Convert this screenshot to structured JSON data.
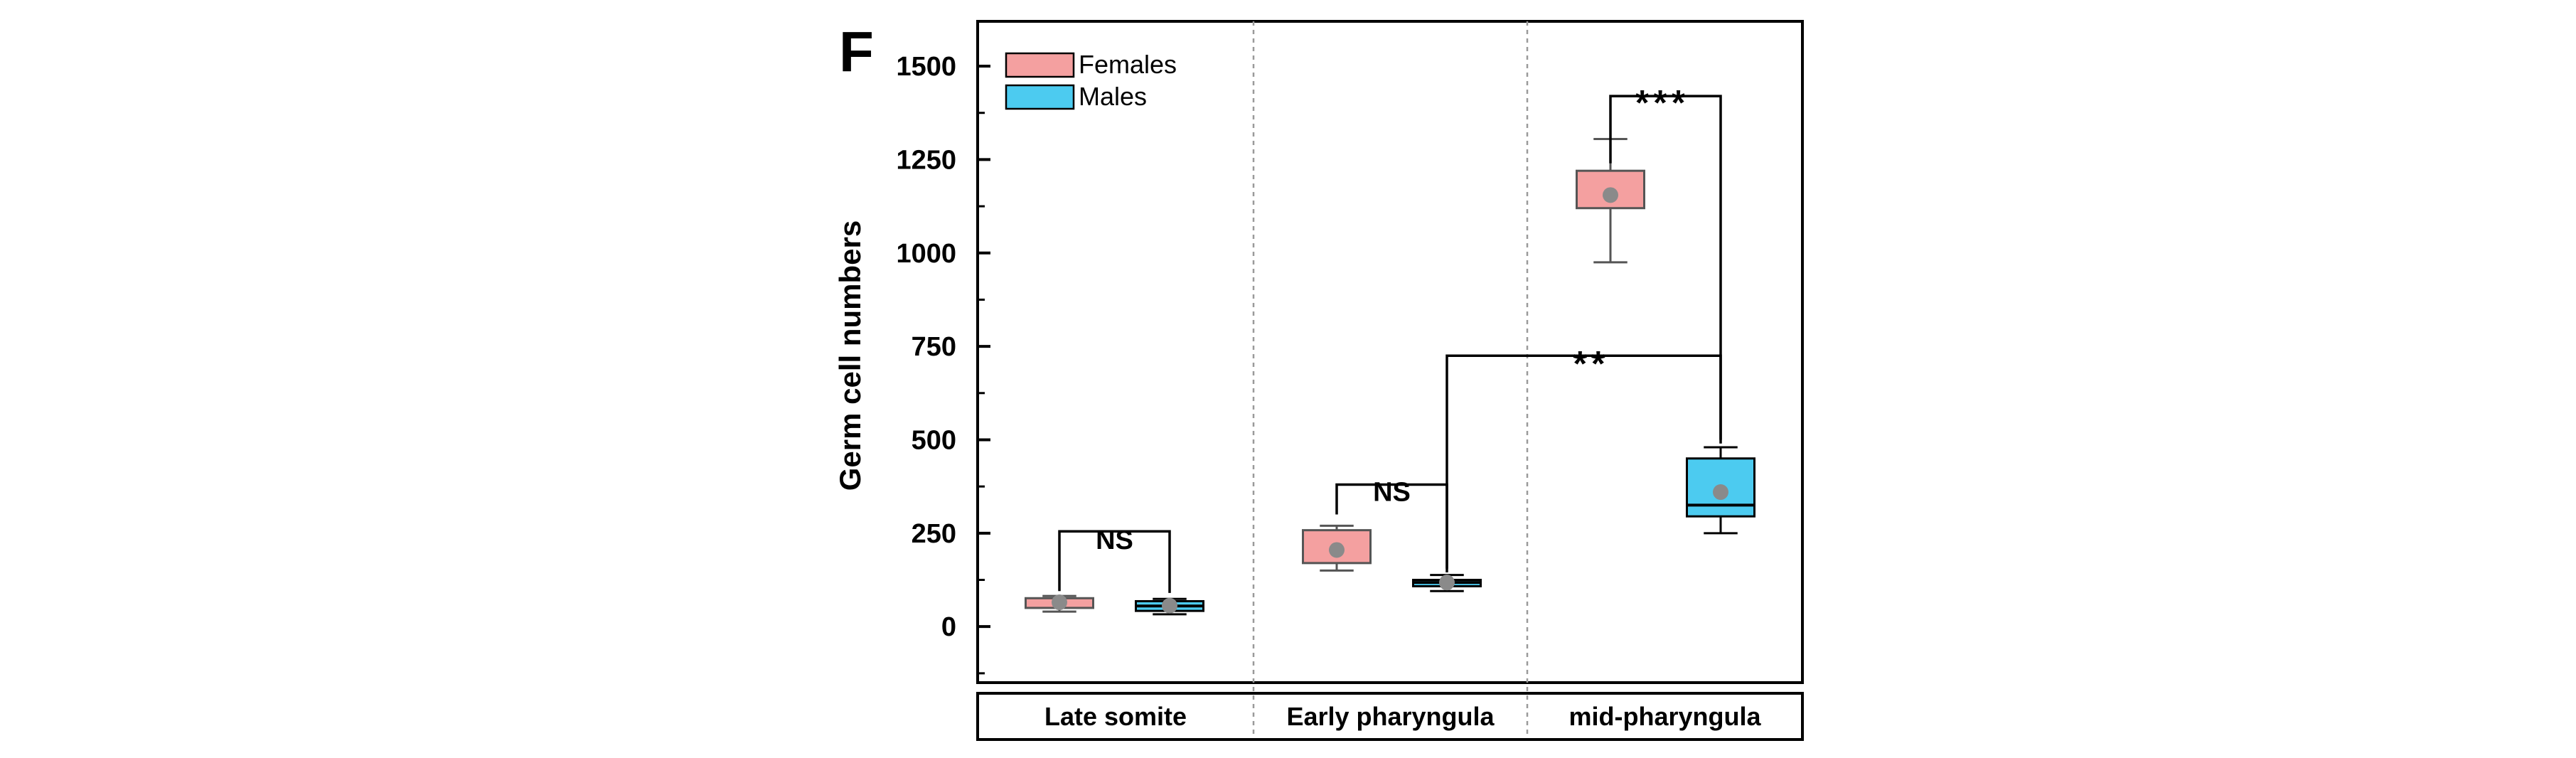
{
  "panel_label": "F",
  "colors": {
    "females": "#f4a0a0",
    "males": "#4ccbf0",
    "mean_dot": "#8a8a8a",
    "axis": "#000000",
    "separator": "#9a9a9a"
  },
  "chart_data": {
    "type": "box",
    "ylabel": "Germ cell numbers",
    "ylim": [
      -150,
      1620
    ],
    "yticks": [
      0,
      250,
      500,
      750,
      1000,
      1250,
      1500
    ],
    "ytick_labels": [
      "0",
      "250",
      "500",
      "750",
      "1000",
      "1250",
      "1500"
    ],
    "categories": [
      "Late somite",
      "Early pharyngula",
      "mid-pharyngula"
    ],
    "legend": [
      {
        "name": "Females",
        "color_key": "females"
      },
      {
        "name": "Males",
        "color_key": "males"
      }
    ],
    "boxes": [
      {
        "category": "Late somite",
        "group": "Females",
        "min": 40,
        "q1": 50,
        "median": 62,
        "q3": 76,
        "max": 82,
        "mean": 65
      },
      {
        "category": "Late somite",
        "group": "Males",
        "min": 33,
        "q1": 42,
        "median": 55,
        "q3": 68,
        "max": 74,
        "mean": 56
      },
      {
        "category": "Early pharyngula",
        "group": "Females",
        "min": 150,
        "q1": 170,
        "median": 215,
        "q3": 258,
        "max": 270,
        "mean": 205
      },
      {
        "category": "Early pharyngula",
        "group": "Males",
        "min": 95,
        "q1": 108,
        "median": 118,
        "q3": 125,
        "max": 138,
        "mean": 118
      },
      {
        "category": "mid-pharyngula",
        "group": "Females",
        "min": 975,
        "q1": 1120,
        "median": 1160,
        "q3": 1220,
        "max": 1305,
        "mean": 1155
      },
      {
        "category": "mid-pharyngula",
        "group": "Males",
        "min": 250,
        "q1": 295,
        "median": 325,
        "q3": 450,
        "max": 480,
        "mean": 360
      }
    ],
    "significance": [
      {
        "label": "NS",
        "from_box": 0,
        "to_box": 1
      },
      {
        "label": "NS",
        "from_box": 2,
        "to_box": 3
      },
      {
        "label": "**",
        "from_box": 3,
        "to_box": 5
      },
      {
        "label": "***",
        "from_box": 4,
        "to_box": 5
      }
    ]
  }
}
